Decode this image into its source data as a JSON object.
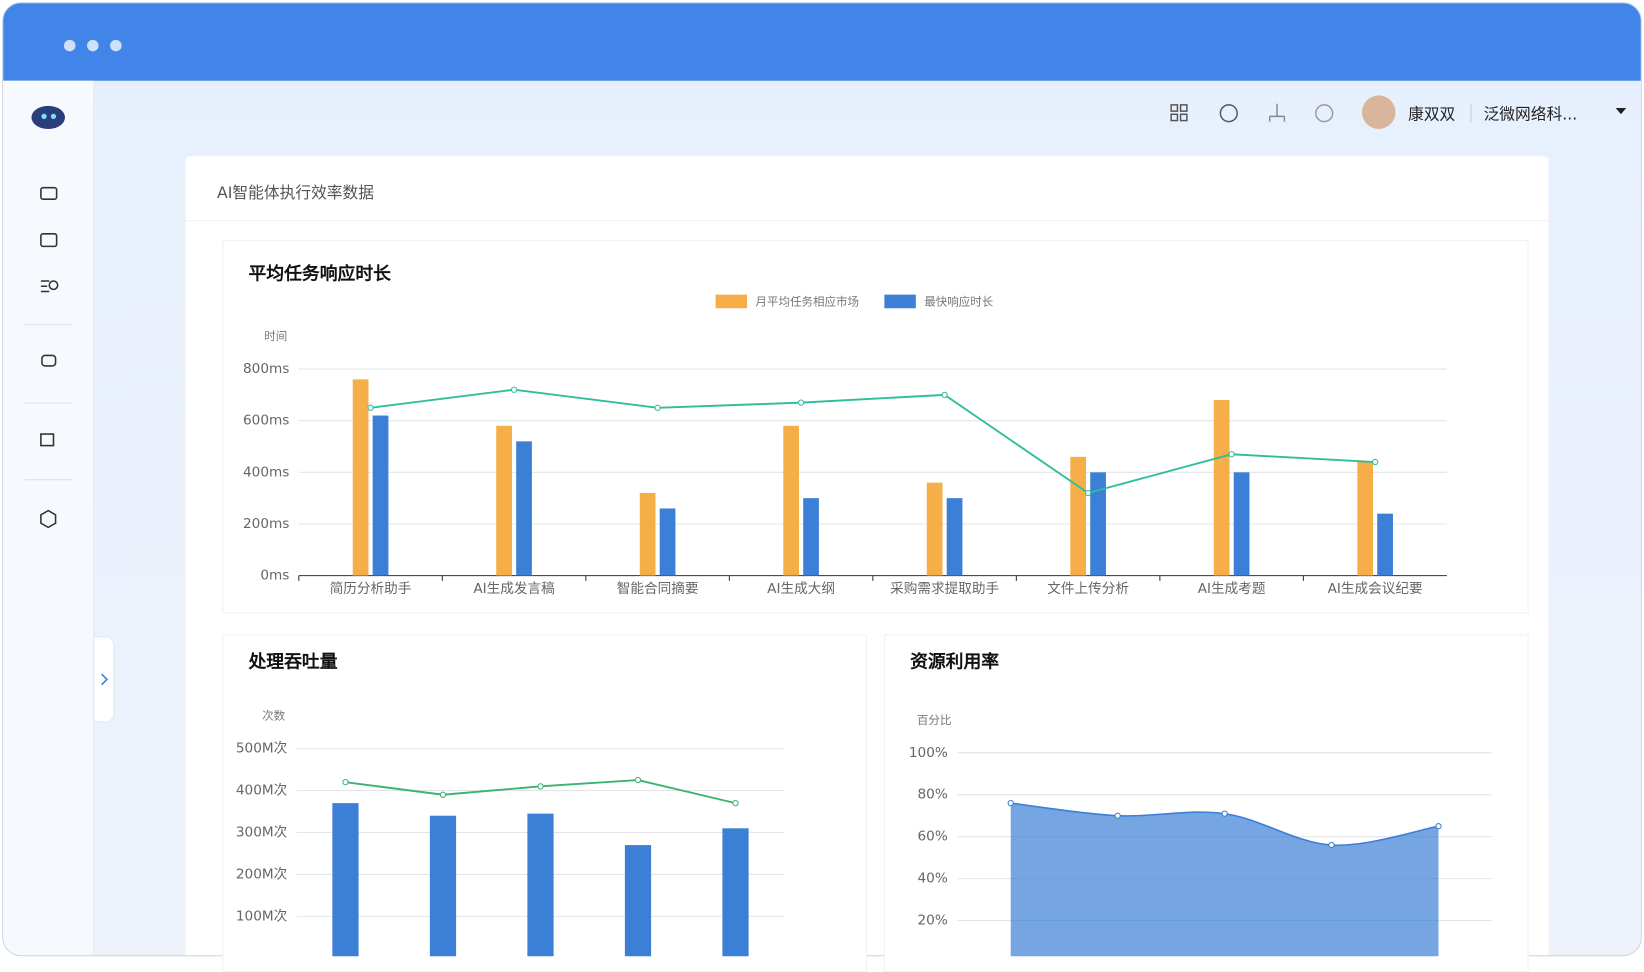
{
  "header": {
    "user": "康双双",
    "org": "泛微网络科..."
  },
  "panel": {
    "title": "AI智能体执行效率数据"
  },
  "chart_data": [
    {
      "type": "bar",
      "title": "平均任务响应时长",
      "y_label": "时间",
      "categories": [
        "简历分析助手",
        "AI生成发言稿",
        "智能合同摘要",
        "AI生成大纲",
        "采购需求提取助手",
        "文件上传分析",
        "AI生成考题",
        "AI生成会议纪要"
      ],
      "series": [
        {
          "name": "月平均任务相应市场",
          "color": "#f5ae48",
          "values": [
            760,
            580,
            320,
            580,
            360,
            460,
            680,
            440
          ]
        },
        {
          "name": "最快响应时长",
          "color": "#3b7fd6",
          "values": [
            620,
            520,
            260,
            300,
            300,
            400,
            400,
            240
          ]
        },
        {
          "type": "line",
          "color": "#2fbe9c",
          "values": [
            650,
            720,
            650,
            670,
            700,
            320,
            470,
            440
          ]
        }
      ],
      "ylim": [
        0,
        800
      ],
      "yticks": [
        {
          "value": 0,
          "label": "0ms"
        },
        {
          "value": 200,
          "label": "200ms"
        },
        {
          "value": 400,
          "label": "400ms"
        },
        {
          "value": 600,
          "label": "600ms"
        },
        {
          "value": 800,
          "label": "800ms"
        }
      ],
      "grid": true
    },
    {
      "type": "bar",
      "title": "处理吞吐量",
      "y_label": "次数",
      "categories": [
        null,
        null,
        null,
        null,
        null
      ],
      "series": [
        {
          "color": "#3b7fd6",
          "values": [
            370,
            340,
            345,
            270,
            310
          ]
        },
        {
          "type": "line",
          "color": "#3cb371",
          "values": [
            420,
            390,
            410,
            425,
            370
          ]
        }
      ],
      "ylim": [
        0,
        500
      ],
      "yticks": [
        {
          "value": 100,
          "label": "100M次"
        },
        {
          "value": 200,
          "label": "200M次"
        },
        {
          "value": 300,
          "label": "300M次"
        },
        {
          "value": 400,
          "label": "400M次"
        },
        {
          "value": 500,
          "label": "500M次"
        }
      ],
      "grid": true
    },
    {
      "type": "area",
      "title": "资源利用率",
      "y_label": "百分比",
      "categories": [
        null,
        null,
        null,
        null,
        null
      ],
      "color": "#3b7fd6",
      "values": [
        76,
        70,
        71,
        56,
        65
      ],
      "ylim": [
        0,
        100
      ],
      "yticks": [
        {
          "value": 20,
          "label": "20%"
        },
        {
          "value": 40,
          "label": "40%"
        },
        {
          "value": 60,
          "label": "60%"
        },
        {
          "value": 80,
          "label": "80%"
        },
        {
          "value": 100,
          "label": "100%"
        }
      ],
      "grid": true
    }
  ]
}
